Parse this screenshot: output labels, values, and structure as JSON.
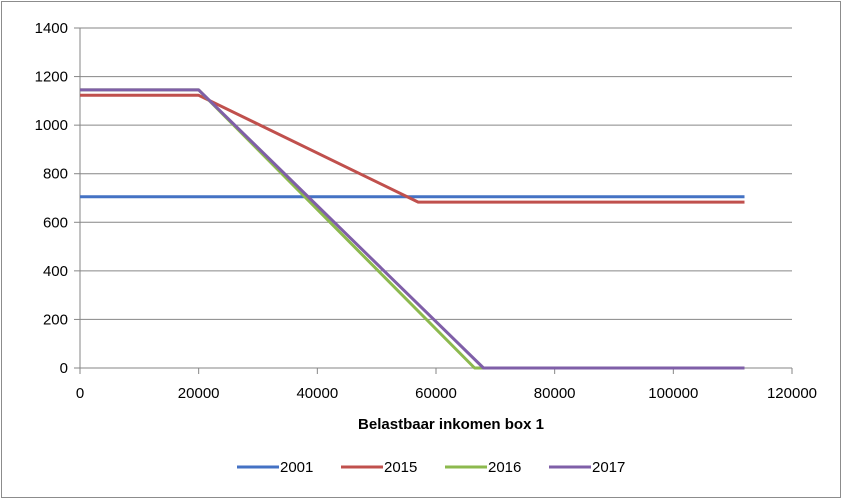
{
  "chart_data": {
    "type": "line",
    "title": "",
    "xlabel": "Belastbaar inkomen box 1",
    "ylabel": "",
    "xlim": [
      0,
      120000
    ],
    "ylim": [
      0,
      1400
    ],
    "x_ticks": [
      0,
      20000,
      40000,
      60000,
      80000,
      100000,
      120000
    ],
    "y_ticks": [
      0,
      200,
      400,
      600,
      800,
      1000,
      1200,
      1400
    ],
    "grid": "horizontal",
    "legend_position": "bottom",
    "series": [
      {
        "name": "2001",
        "color": "#4472c4",
        "points": [
          [
            0,
            705
          ],
          [
            112000,
            705
          ]
        ]
      },
      {
        "name": "2015",
        "color": "#c0504d",
        "points": [
          [
            0,
            1123
          ],
          [
            20000,
            1123
          ],
          [
            57000,
            683
          ],
          [
            112000,
            683
          ]
        ]
      },
      {
        "name": "2016",
        "color": "#8cb94e",
        "points": [
          [
            0,
            1145
          ],
          [
            20000,
            1145
          ],
          [
            66500,
            0
          ],
          [
            112000,
            0
          ]
        ]
      },
      {
        "name": "2017",
        "color": "#7f5fa8",
        "points": [
          [
            0,
            1145
          ],
          [
            20000,
            1145
          ],
          [
            68000,
            0
          ],
          [
            112000,
            0
          ]
        ]
      }
    ]
  }
}
